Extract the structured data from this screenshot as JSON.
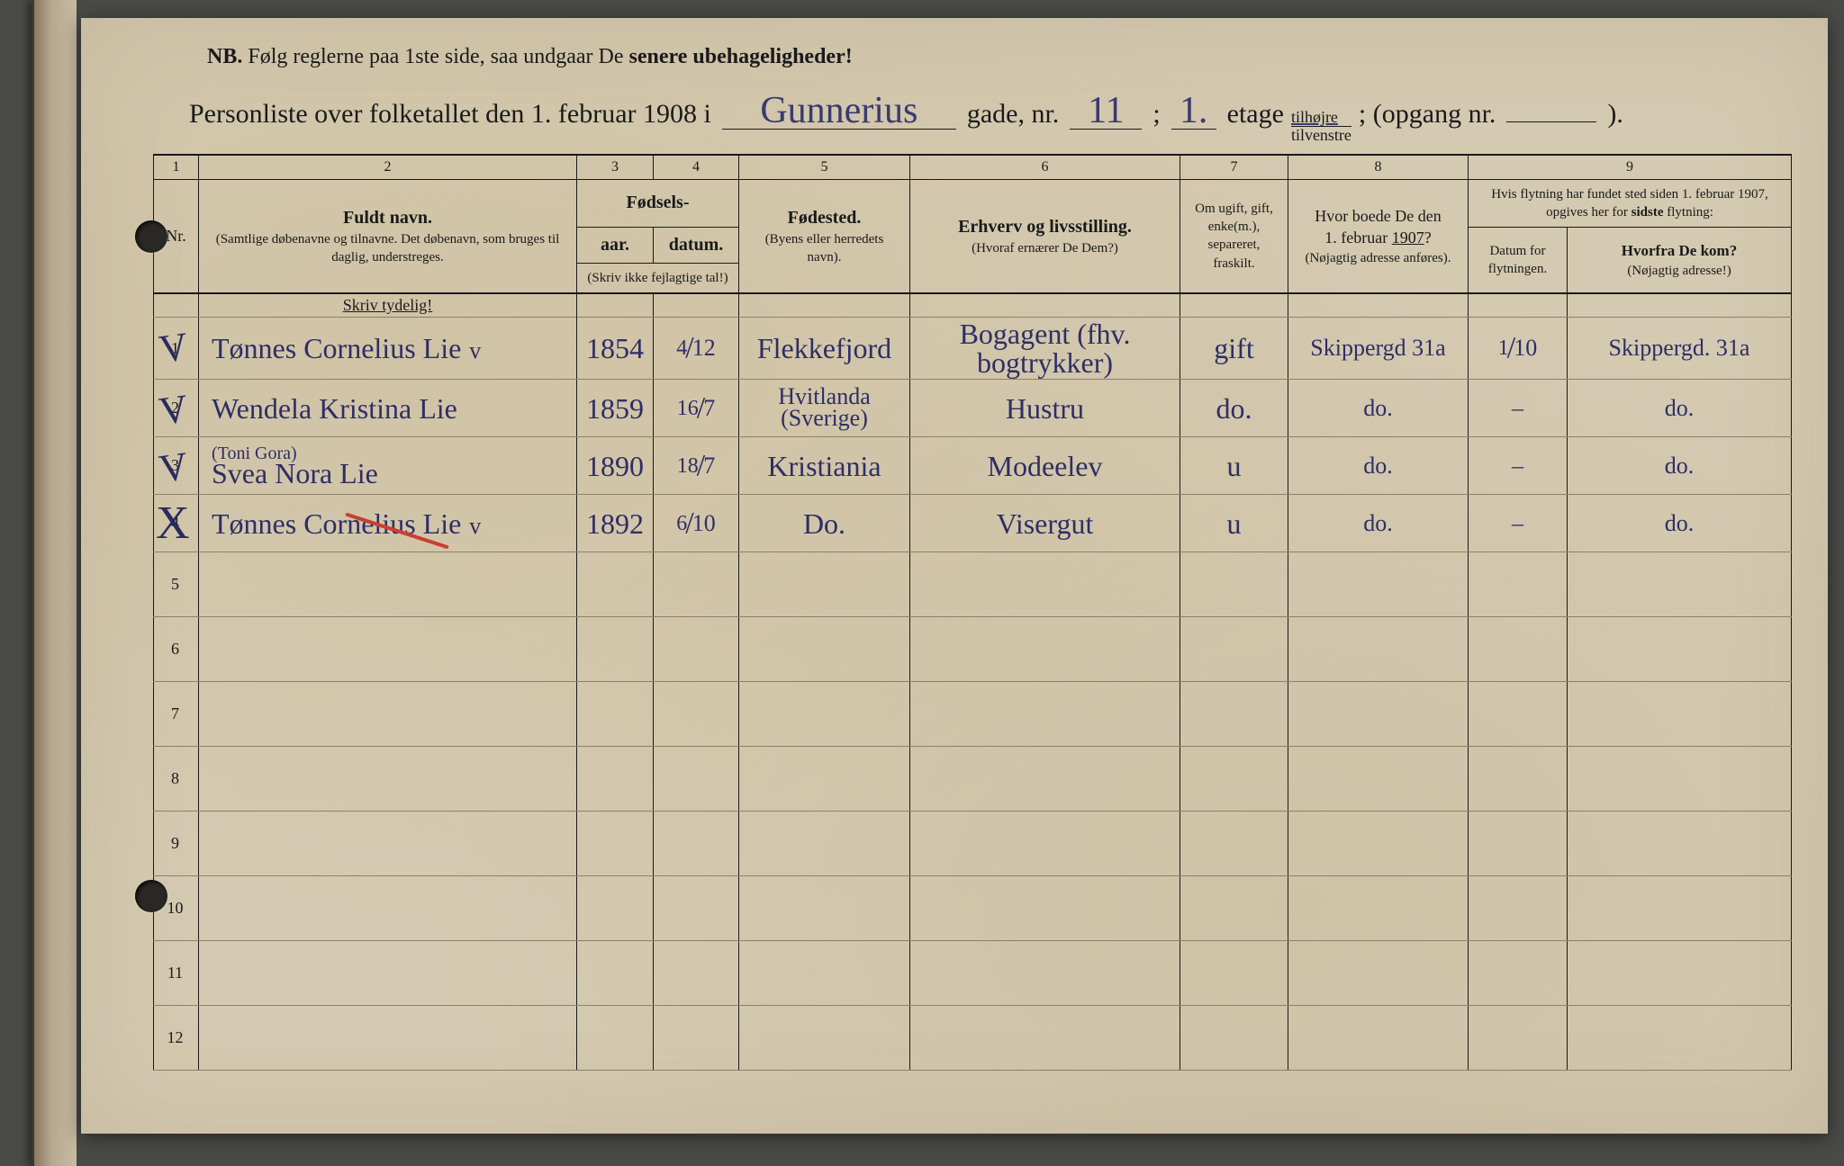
{
  "nb": {
    "prefix": "NB.",
    "text_a": "Følg reglerne paa 1ste side, saa undgaar De",
    "text_b": "senere ubehageligheder!"
  },
  "title": {
    "prefix": "Personliste over folketallet den 1. februar 1908 i",
    "street": "Gunnerius",
    "gade": "gade, nr.",
    "nr": "11",
    "semi": ";",
    "etage_val": "1.",
    "etage": "etage",
    "tilhojre": "tilhøjre",
    "tilvenstre": "tilvenstre",
    "semi2": "; (opgang nr.",
    "opgang": "",
    "end": ")."
  },
  "column_numbers": [
    "1",
    "2",
    "3",
    "4",
    "5",
    "6",
    "7",
    "8",
    "9"
  ],
  "headers": {
    "nr": "Nr.",
    "fullname_title": "Fuldt navn.",
    "fullname_sub": "(Samtlige døbenavne og tilnavne. Det døbenavn, som bruges til daglig, understreges.",
    "fodsels": "Fødsels-",
    "aar": "aar.",
    "datum": "datum.",
    "skriv_ikke": "(Skriv ikke fejlagtige tal!)",
    "fodested": "Fødested.",
    "fodested_sub": "(Byens eller herredets navn).",
    "erhverv": "Erhverv og livsstilling.",
    "erhverv_sub": "(Hvoraf ernærer De Dem?)",
    "marital": "Om ugift, gift, enke(m.), separeret, fraskilt.",
    "prev_addr": "Hvor boede De den 1. februar 1907?",
    "prev_addr_sub": "(Nøjagtig adresse anføres).",
    "move_title": "Hvis flytning har fundet sted siden 1. februar 1907, opgives her for sidste flytning:",
    "move_date": "Datum for flytningen.",
    "move_from": "Hvorfra De kom?",
    "move_from_sub": "(Nøjagtig adresse!)",
    "skriv_tydelig": "Skriv tydelig!"
  },
  "rows": [
    {
      "mark": "✓",
      "num": "1",
      "name": "Tønnes Cornelius Lie",
      "annotation": "",
      "v": "v",
      "year": "1854",
      "date_num": "4",
      "date_den": "12",
      "birthplace": "Flekkefjord",
      "occupation": "Bogagent (fhv. bogtrykker)",
      "marital": "gift",
      "prev": "Skippergd 31a",
      "move_date_num": "1",
      "move_date_den": "10",
      "from": "Skippergd. 31a",
      "red": false
    },
    {
      "mark": "✓",
      "num": "2",
      "name": "Wendela Kristina Lie",
      "annotation": "",
      "v": "",
      "year": "1859",
      "date_num": "16",
      "date_den": "7",
      "birthplace": "Hvitlanda (Sverige)",
      "occupation": "Hustru",
      "marital": "do.",
      "prev": "do.",
      "move_date_num": "",
      "move_date_den": "",
      "move_dash": "–",
      "from": "do.",
      "red": false,
      "two_line_bp": true
    },
    {
      "mark": "✓",
      "num": "3",
      "name": "Svea Nora Lie",
      "annotation": "(Toni Gora)",
      "v": "",
      "year": "1890",
      "date_num": "18",
      "date_den": "7",
      "birthplace": "Kristiania",
      "occupation": "Modeelev",
      "marital": "u",
      "prev": "do.",
      "move_date_num": "",
      "move_date_den": "",
      "move_dash": "–",
      "from": "do.",
      "red": false
    },
    {
      "mark": "✗",
      "num": "4",
      "name": "Tønnes Cornelius Lie",
      "annotation": "",
      "v": "v",
      "year": "1892",
      "date_num": "6",
      "date_den": "10",
      "birthplace": "Do.",
      "occupation": "Visergut",
      "marital": "u",
      "prev": "do.",
      "move_date_num": "",
      "move_date_den": "",
      "move_dash": "–",
      "from": "do.",
      "red": true
    }
  ],
  "empty_rows": [
    "5",
    "6",
    "7",
    "8",
    "9",
    "10",
    "11",
    "12"
  ]
}
